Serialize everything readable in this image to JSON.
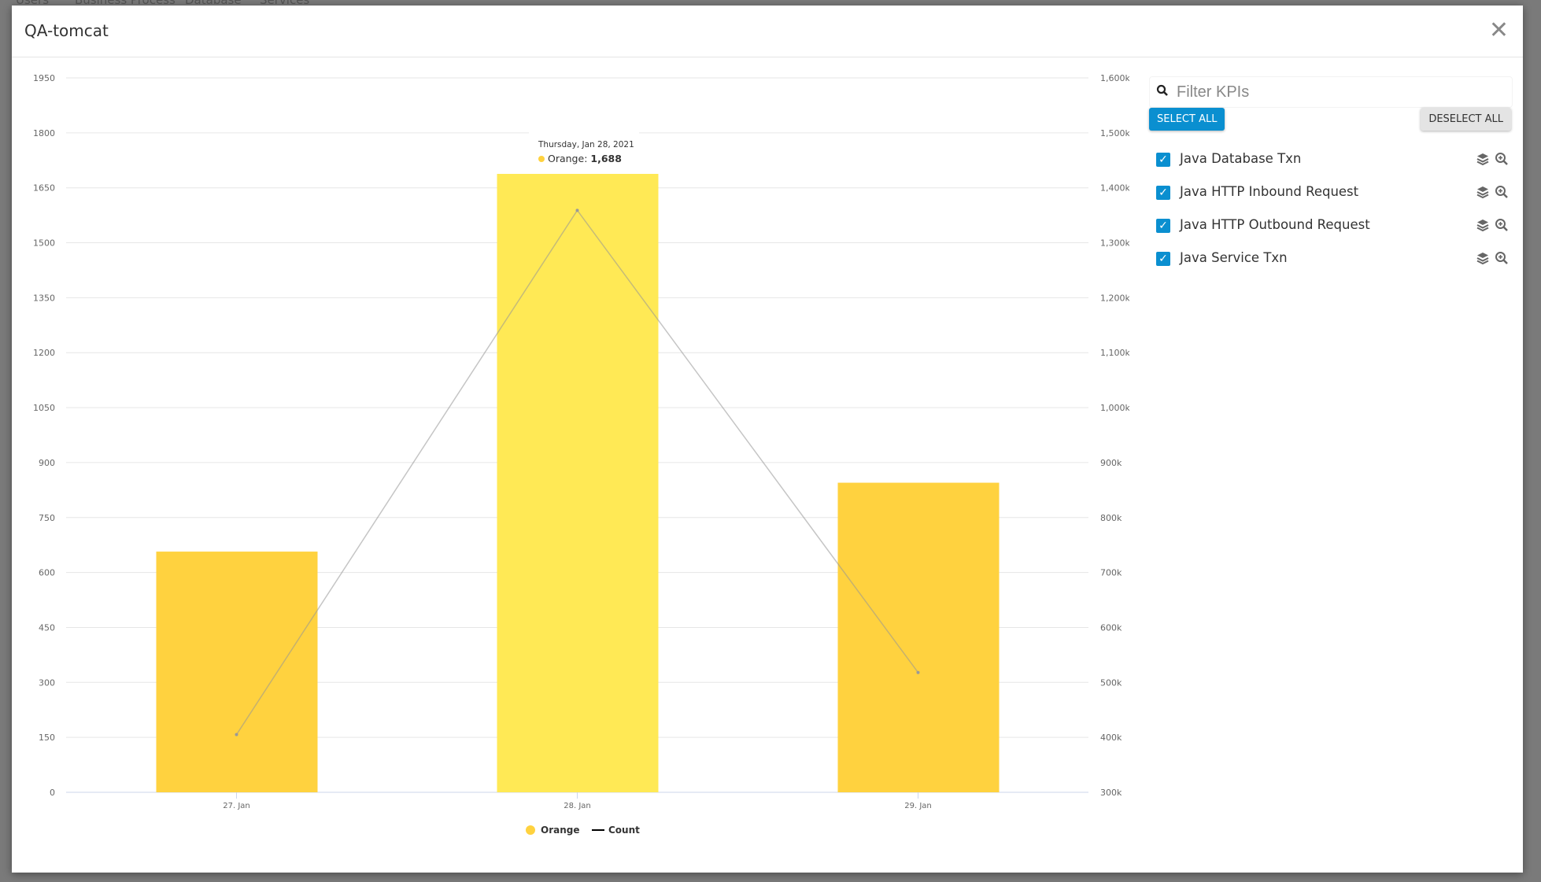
{
  "background_nav": [
    "Users",
    "Business Process",
    "Database",
    "Services"
  ],
  "modal": {
    "title": "QA-tomcat",
    "close_icon": "close-icon"
  },
  "colors": {
    "bar": "#FFD23F",
    "bar_hover": "#FFE955",
    "line": "#cccccc",
    "accent": "#0a8fd0"
  },
  "tooltip": {
    "date": "Thursday, Jan 28, 2021",
    "series": "Orange",
    "value": "1,688"
  },
  "panel": {
    "filter_placeholder": "Filter KPIs",
    "select_all": "SELECT ALL",
    "deselect_all": "DESELECT ALL",
    "items": [
      {
        "label": "Java Database Txn",
        "checked": true
      },
      {
        "label": "Java HTTP Inbound Request",
        "checked": true
      },
      {
        "label": "Java HTTP Outbound Request",
        "checked": true
      },
      {
        "label": "Java Service Txn",
        "checked": true
      }
    ]
  },
  "chart_data": {
    "type": "bar+line",
    "categories": [
      "27. Jan",
      "28. Jan",
      "29. Jan"
    ],
    "series": [
      {
        "name": "Orange",
        "type": "bar",
        "axis": "left",
        "values": [
          657,
          1688,
          845
        ]
      },
      {
        "name": "Count",
        "type": "line",
        "axis": "right",
        "values": [
          405000,
          1359000,
          518000
        ]
      }
    ],
    "left_axis": {
      "range": [
        0,
        1950
      ],
      "ticks": [
        "0",
        "150",
        "300",
        "450",
        "600",
        "750",
        "900",
        "1050",
        "1200",
        "1350",
        "1500",
        "1650",
        "1800",
        "1950"
      ]
    },
    "right_axis": {
      "range": [
        300000,
        1600000
      ],
      "ticks": [
        "300k",
        "400k",
        "500k",
        "600k",
        "700k",
        "800k",
        "900k",
        "1,000k",
        "1,100k",
        "1,200k",
        "1,300k",
        "1,400k",
        "1,500k",
        "1,600k"
      ]
    },
    "hovered_category": "28. Jan",
    "grid": true,
    "legend": "bottom-center"
  }
}
